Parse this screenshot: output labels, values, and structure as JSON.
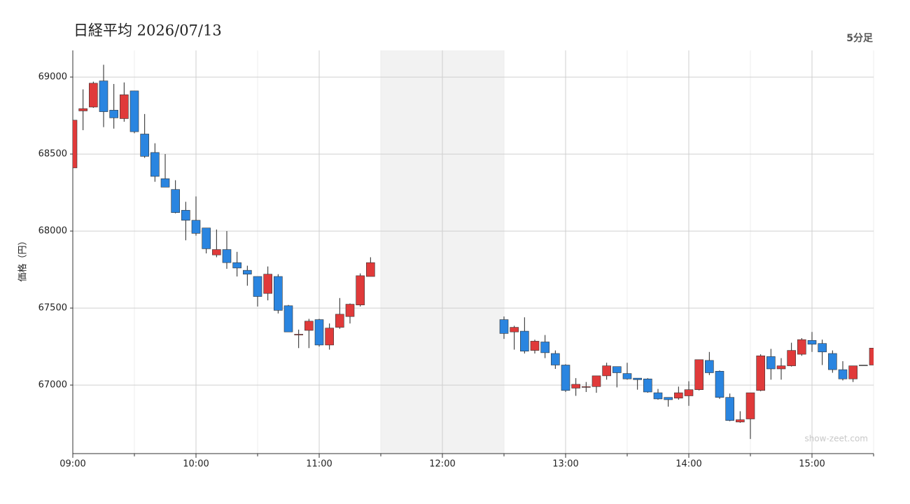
{
  "chart_data": {
    "type": "candlestick",
    "title": "日経平均 2026/07/13",
    "timeframe": "5分足",
    "ylabel": "価格（円）",
    "watermark": "show-zeet.com",
    "up_color": "#e03a3a",
    "down_color": "#2a85e0",
    "flat_color": "#444444",
    "shade_color": "#f2f2f2",
    "grid": true,
    "shaded_x": [
      "11:30",
      "12:30"
    ],
    "xlim": [
      "09:00",
      "15:30"
    ],
    "xticks": [
      "09:00",
      "10:00",
      "11:00",
      "12:00",
      "13:00",
      "14:00",
      "15:00"
    ],
    "xticks_minor": [
      "09:30",
      "10:30",
      "11:30",
      "12:30",
      "13:30",
      "14:30",
      "15:30"
    ],
    "ylim": [
      66555,
      69173
    ],
    "yticks": [
      67000,
      67500,
      68000,
      68500,
      69000
    ],
    "x": [
      "09:00",
      "09:05",
      "09:10",
      "09:15",
      "09:20",
      "09:25",
      "09:30",
      "09:35",
      "09:40",
      "09:45",
      "09:50",
      "09:55",
      "10:00",
      "10:05",
      "10:10",
      "10:15",
      "10:20",
      "10:25",
      "10:30",
      "10:35",
      "10:40",
      "10:45",
      "10:50",
      "10:55",
      "11:00",
      "11:05",
      "11:10",
      "11:15",
      "11:20",
      "11:25",
      "12:30",
      "12:35",
      "12:40",
      "12:45",
      "12:50",
      "12:55",
      "13:00",
      "13:05",
      "13:10",
      "13:15",
      "13:20",
      "13:25",
      "13:30",
      "13:35",
      "13:40",
      "13:45",
      "13:50",
      "13:55",
      "14:00",
      "14:05",
      "14:10",
      "14:15",
      "14:20",
      "14:25",
      "14:30",
      "14:35",
      "14:40",
      "14:45",
      "14:50",
      "14:55",
      "15:00",
      "15:05",
      "15:10",
      "15:15",
      "15:20",
      "15:25",
      "15:30"
    ],
    "open": [
      68410,
      68780,
      68805,
      68975,
      68785,
      68730,
      68910,
      68630,
      68510,
      68340,
      68270,
      68135,
      68070,
      68020,
      67845,
      67880,
      67795,
      67745,
      67705,
      67595,
      67705,
      67515,
      67325,
      67355,
      67425,
      67260,
      67375,
      67445,
      67520,
      67705,
      67425,
      67345,
      67350,
      67225,
      67280,
      67205,
      67130,
      66980,
      66985,
      66990,
      67060,
      67120,
      67075,
      67045,
      67040,
      66950,
      66920,
      66915,
      66930,
      66970,
      67160,
      67090,
      66920,
      66760,
      66780,
      66965,
      67185,
      67105,
      67125,
      67200,
      67290,
      67270,
      67205,
      67100,
      67040,
      67130,
      67130
    ],
    "high": [
      68720,
      68920,
      68970,
      69080,
      68955,
      68965,
      68910,
      68760,
      68570,
      68500,
      68330,
      68190,
      68225,
      68020,
      68010,
      68000,
      67865,
      67775,
      67705,
      67770,
      67720,
      67520,
      67360,
      67430,
      67430,
      67400,
      67565,
      67530,
      67725,
      67830,
      67445,
      67385,
      67440,
      67295,
      67325,
      67225,
      67135,
      67045,
      67020,
      67060,
      67145,
      67120,
      67145,
      67045,
      67045,
      66975,
      66920,
      66990,
      67025,
      67165,
      67215,
      67095,
      66945,
      66830,
      66950,
      67200,
      67235,
      67175,
      67275,
      67305,
      67345,
      67295,
      67225,
      67155,
      67125,
      67130,
      67240
    ],
    "low": [
      68410,
      68655,
      68800,
      68675,
      68665,
      68710,
      68635,
      68475,
      68320,
      68285,
      68115,
      67940,
      67970,
      67855,
      67830,
      67755,
      67705,
      67645,
      67510,
      67550,
      67465,
      67345,
      67240,
      67240,
      67250,
      67230,
      67365,
      67400,
      67510,
      67705,
      67300,
      67230,
      67205,
      67205,
      67175,
      67105,
      66955,
      66930,
      66955,
      66950,
      67035,
      66985,
      67035,
      66970,
      66950,
      66905,
      66860,
      66905,
      66865,
      66965,
      67065,
      66910,
      66765,
      66755,
      66650,
      66960,
      67035,
      67035,
      67120,
      67190,
      67215,
      67130,
      67080,
      67030,
      67020,
      67130,
      67130
    ],
    "close": [
      68720,
      68795,
      68960,
      68775,
      68735,
      68885,
      68645,
      68485,
      68355,
      68285,
      68120,
      68070,
      67985,
      67885,
      67880,
      67795,
      67760,
      67720,
      67575,
      67720,
      67485,
      67345,
      67330,
      67415,
      67260,
      67370,
      67460,
      67525,
      67710,
      67795,
      67335,
      67375,
      67220,
      67285,
      67210,
      67130,
      66965,
      67005,
      66990,
      67060,
      67125,
      67080,
      67040,
      67035,
      66955,
      66910,
      66905,
      66950,
      66970,
      67165,
      67080,
      66920,
      66770,
      66775,
      66950,
      67190,
      67105,
      67125,
      67225,
      67295,
      67265,
      67215,
      67100,
      67040,
      67125,
      67130,
      67240
    ]
  }
}
